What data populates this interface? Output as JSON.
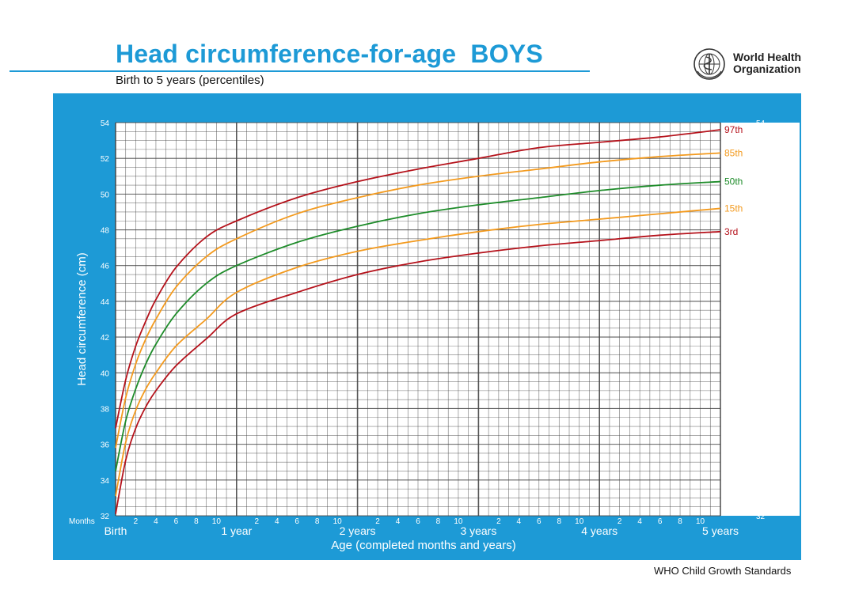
{
  "header": {
    "title": "Head circumference-for-age  BOYS",
    "subtitle": "Birth to 5 years (percentiles)",
    "org_line1": "World Health",
    "org_line2": "Organization",
    "logo_icon": "who-emblem-icon"
  },
  "footer": {
    "text": "WHO Child Growth Standards"
  },
  "colors": {
    "frame": "#1d9ad6",
    "grid": "#444444",
    "p3": "#b5121b",
    "p15": "#f39a1e",
    "p50": "#1e8c2a",
    "p85": "#f39a1e",
    "p97": "#b5121b"
  },
  "chart_data": {
    "type": "line",
    "title": "Head circumference-for-age  BOYS",
    "subtitle": "Birth to 5 years (percentiles)",
    "xlabel": "Age (completed months and years)",
    "ylabel": "Head circumference (cm)",
    "xlim": [
      0,
      60
    ],
    "ylim": [
      32,
      54
    ],
    "y_ticks": [
      32,
      34,
      36,
      38,
      40,
      42,
      44,
      46,
      48,
      50,
      52,
      54
    ],
    "x_months_label": "Months",
    "x_month_ticks": [
      "2",
      "4",
      "6",
      "8",
      "10"
    ],
    "x_year_labels": [
      "Birth",
      "1 year",
      "2 years",
      "3 years",
      "4 years",
      "5 years"
    ],
    "grid": true,
    "legend": "line-end labels right",
    "x": [
      0,
      1,
      2,
      3,
      4,
      6,
      9,
      12,
      18,
      24,
      30,
      36,
      42,
      48,
      54,
      60
    ],
    "series": [
      {
        "name": "3rd",
        "values": [
          32.1,
          35.1,
          36.9,
          38.1,
          39.0,
          40.4,
          41.9,
          43.3,
          44.5,
          45.5,
          46.2,
          46.7,
          47.1,
          47.4,
          47.7,
          47.9
        ]
      },
      {
        "name": "15th",
        "values": [
          33.1,
          36.1,
          37.9,
          39.1,
          40.0,
          41.5,
          43.0,
          44.5,
          45.9,
          46.8,
          47.4,
          47.9,
          48.3,
          48.6,
          48.9,
          49.2
        ]
      },
      {
        "name": "50th",
        "values": [
          34.5,
          37.3,
          39.1,
          40.5,
          41.6,
          43.3,
          45.0,
          46.0,
          47.3,
          48.2,
          48.9,
          49.4,
          49.8,
          50.2,
          50.5,
          50.7
        ]
      },
      {
        "name": "85th",
        "values": [
          35.8,
          38.6,
          40.5,
          41.9,
          43.0,
          44.8,
          46.5,
          47.5,
          48.9,
          49.8,
          50.5,
          51.0,
          51.4,
          51.8,
          52.1,
          52.3
        ]
      },
      {
        "name": "97th",
        "values": [
          36.9,
          39.6,
          41.5,
          42.9,
          44.1,
          45.9,
          47.6,
          48.5,
          49.8,
          50.7,
          51.4,
          52.0,
          52.6,
          52.9,
          53.2,
          53.6
        ]
      }
    ]
  }
}
